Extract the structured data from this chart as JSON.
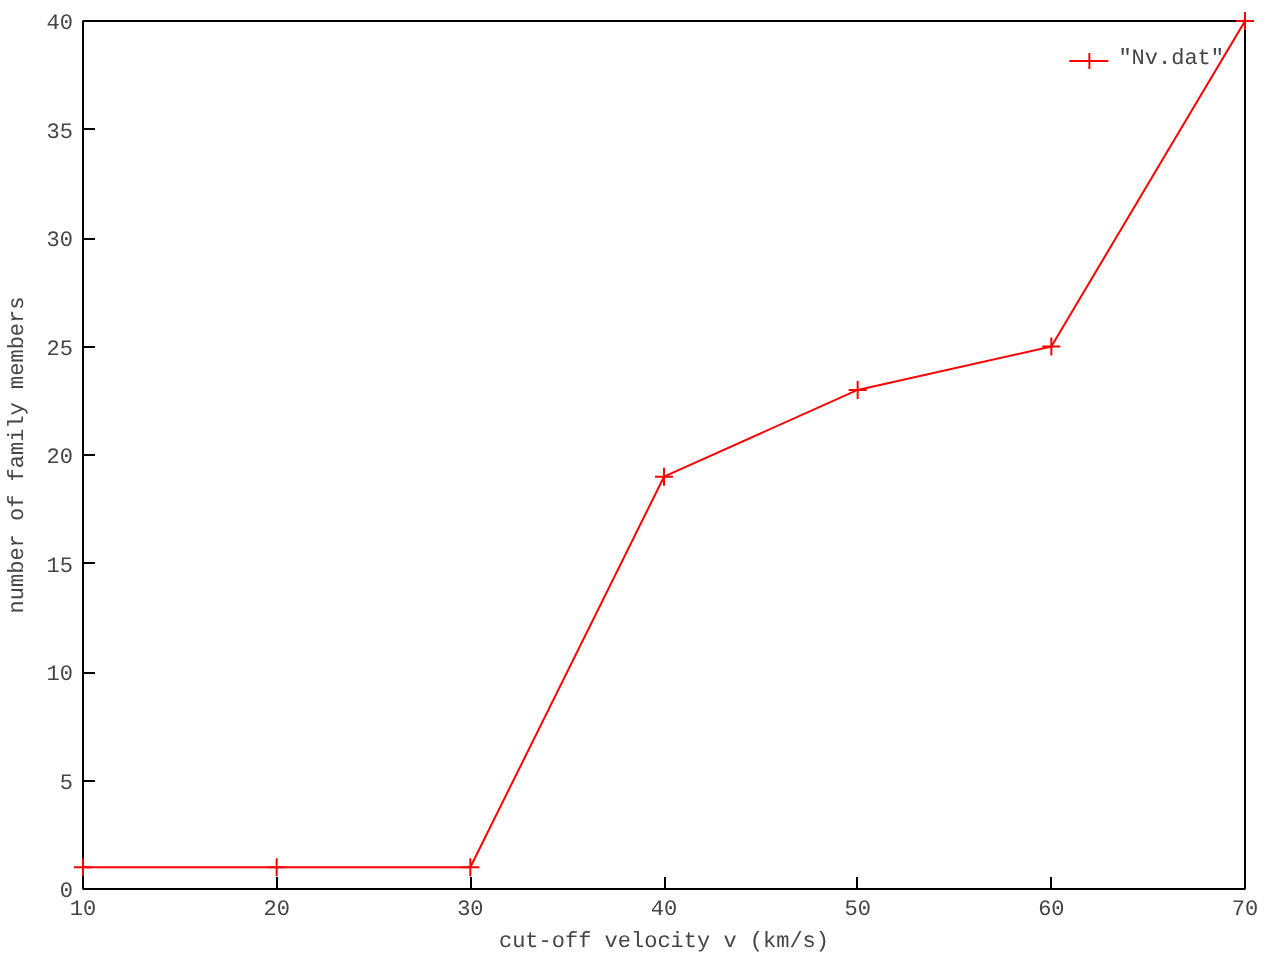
{
  "chart_data": {
    "type": "line",
    "xlabel": "cut-off velocity v (km/s)",
    "ylabel": "number of family members",
    "x": [
      10,
      20,
      30,
      40,
      50,
      60,
      70
    ],
    "series": [
      {
        "name": "\"Nv.dat\"",
        "color": "#ff0000",
        "values": [
          1,
          1,
          1,
          19,
          23,
          25,
          40
        ]
      }
    ],
    "xlim": [
      10,
      70
    ],
    "xticks": [
      10,
      20,
      30,
      40,
      50,
      60,
      70
    ],
    "ylim": [
      0,
      40
    ],
    "yticks": [
      0,
      5,
      10,
      15,
      20,
      25,
      30,
      35,
      40
    ],
    "marker": "cross",
    "line_style": "solid",
    "grid": false,
    "legend": "top right"
  }
}
